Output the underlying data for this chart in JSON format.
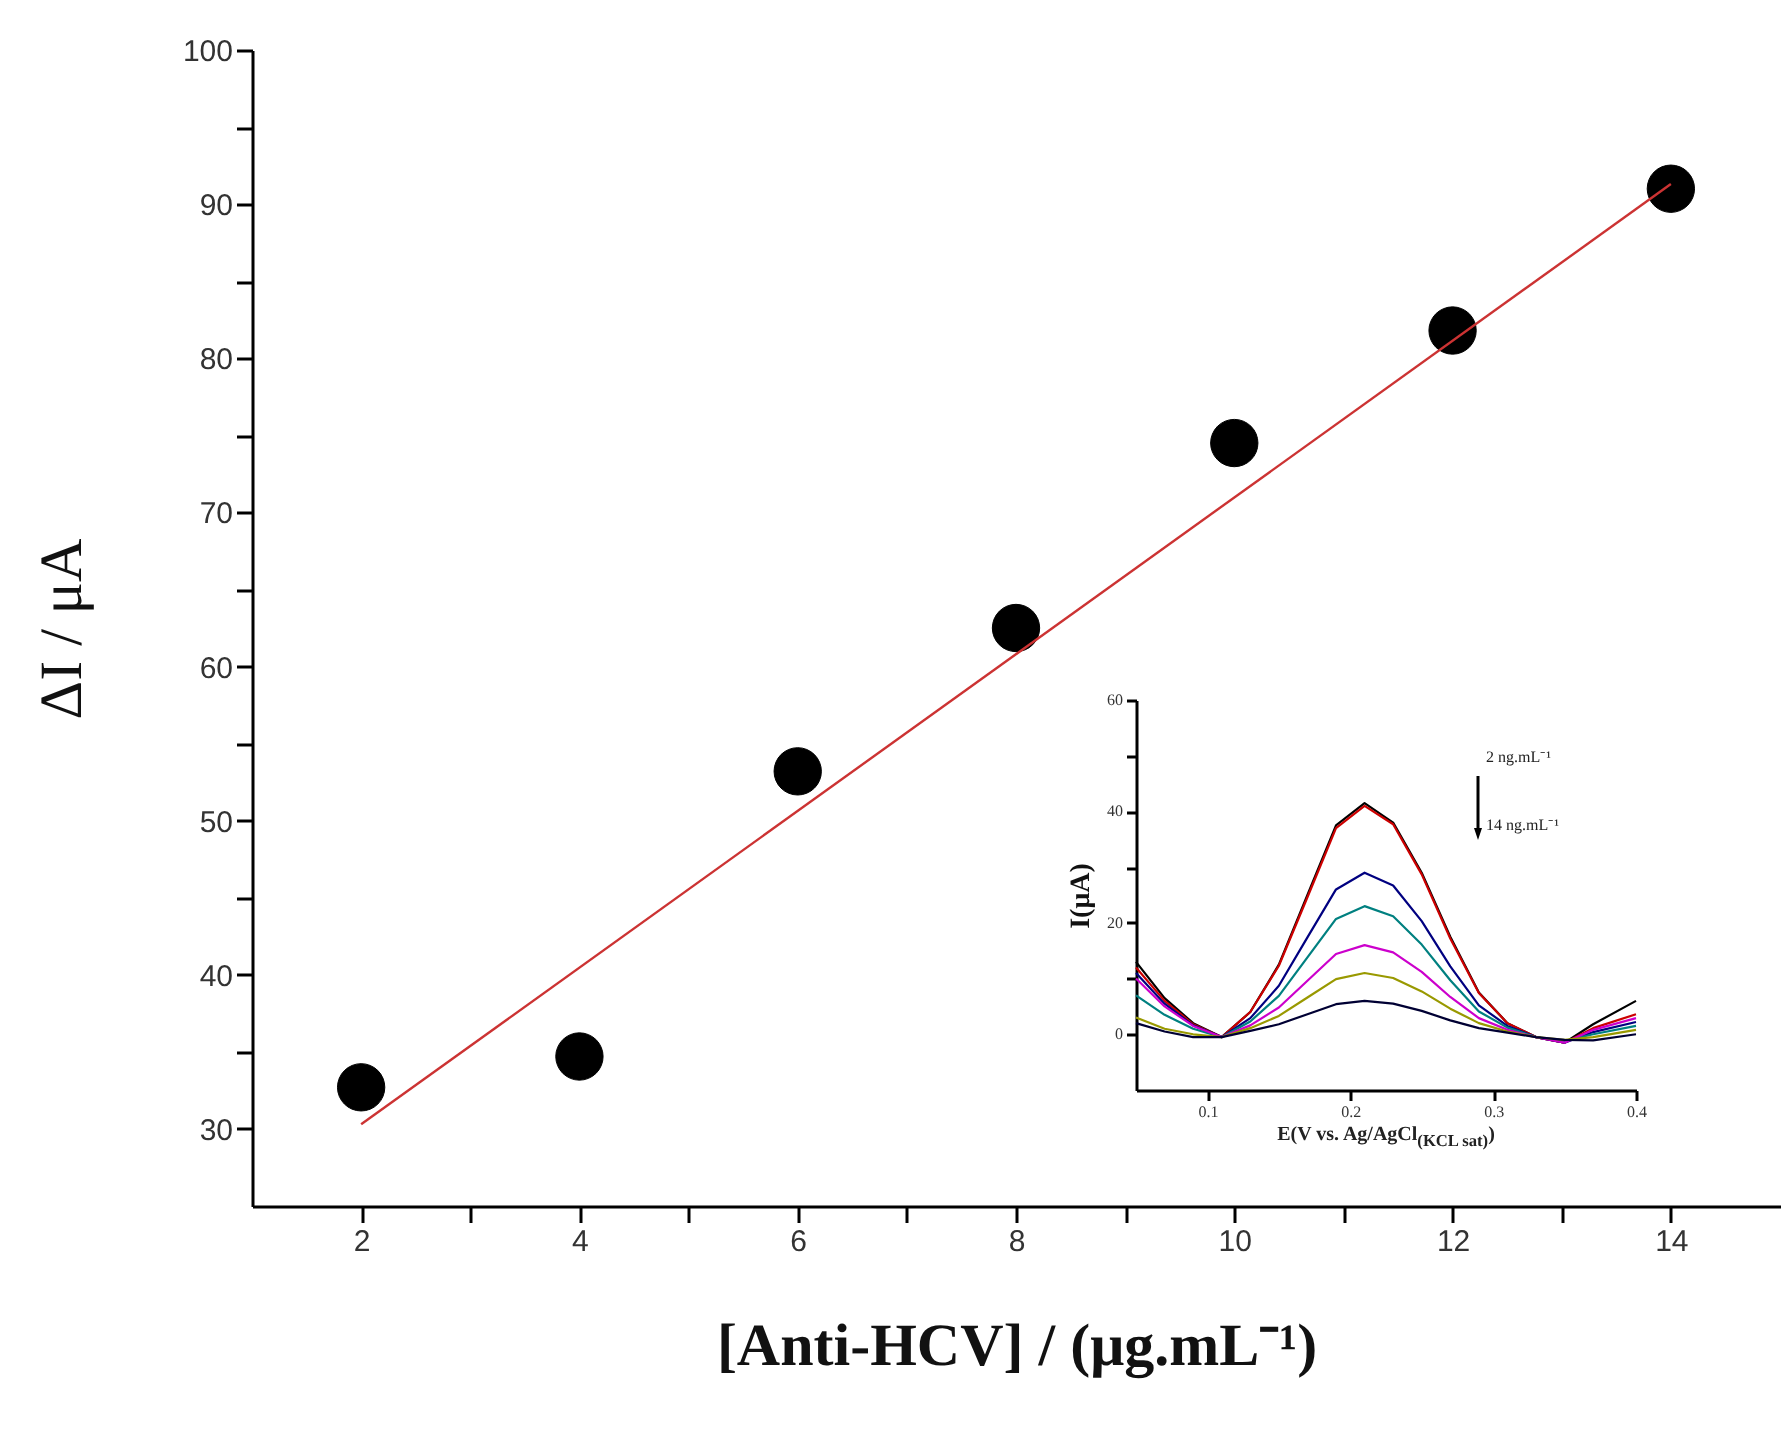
{
  "chart_data": [
    {
      "type": "scatter",
      "xlabel": "[Anti-HCV] / (μg.mL⁻¹)",
      "ylabel": "ΔI / μA",
      "x": [
        2,
        4,
        6,
        8,
        10,
        12,
        14
      ],
      "series": [
        {
          "color": "#000000",
          "marker": "circle",
          "values": [
            32.7,
            34.7,
            53.2,
            62.5,
            74.5,
            81.8,
            91.0
          ]
        },
        {
          "type": "line",
          "color": "#cc3333",
          "x": [
            2,
            14
          ],
          "values": [
            30.3,
            91.3
          ]
        }
      ],
      "grid": false,
      "legend": false,
      "xlim": [
        1,
        15
      ],
      "xticks": [
        2,
        {
          "value": 3,
          "label": null
        },
        4,
        {
          "value": 5,
          "label": null
        },
        6,
        {
          "value": 7,
          "label": null
        },
        8,
        {
          "value": 9,
          "label": null
        },
        10,
        {
          "value": 11,
          "label": null
        },
        12,
        {
          "value": 13,
          "label": null
        },
        14
      ],
      "ylim": [
        25,
        100
      ],
      "yticks": [
        30,
        {
          "value": 35,
          "label": null
        },
        40,
        {
          "value": 45,
          "label": null
        },
        50,
        {
          "value": 55,
          "label": null
        },
        60,
        {
          "value": 65,
          "label": null
        },
        70,
        {
          "value": 75,
          "label": null
        },
        80,
        {
          "value": 85,
          "label": null
        },
        90,
        {
          "value": 95,
          "label": null
        },
        100
      ]
    },
    {
      "type": "line",
      "xlabel": "E(V vs. Ag/AgCl$_{(KCL sat)}$)",
      "ylabel": "I(μA)",
      "annotations": [
        "2 ng.mL⁻¹",
        "14 ng.mL⁻¹"
      ],
      "x": [
        0.05,
        0.07,
        0.09,
        0.11,
        0.13,
        0.15,
        0.17,
        0.19,
        0.21,
        0.23,
        0.25,
        0.27,
        0.29,
        0.31,
        0.33,
        0.35,
        0.37,
        0.4
      ],
      "series": [
        {
          "color": "#000000",
          "values": [
            13,
            6.5,
            2,
            -0.5,
            4,
            12.5,
            25,
            37.5,
            41.5,
            38,
            29,
            17.5,
            7.5,
            2,
            -0.5,
            -1.5,
            1.8,
            6
          ]
        },
        {
          "color": "#cc0000",
          "values": [
            12,
            6,
            1.8,
            -0.5,
            4,
            12.3,
            24.6,
            37,
            41,
            37.7,
            28.7,
            17.2,
            7.4,
            2,
            -0.5,
            -1.5,
            1.1,
            3.6
          ]
        },
        {
          "color": "#000080",
          "values": [
            11,
            5.5,
            1.6,
            -0.5,
            2.9,
            8.7,
            17.4,
            26,
            29,
            26.7,
            20.3,
            12.2,
            5.2,
            1.5,
            -0.5,
            -1.5,
            0.4,
            2.2
          ]
        },
        {
          "color": "#008080",
          "values": [
            7,
            3.5,
            1,
            -0.5,
            2.3,
            6.9,
            13.8,
            20.7,
            23,
            21.2,
            16.1,
            9.7,
            4.1,
            1.2,
            -0.5,
            -1.2,
            0,
            1.5
          ]
        },
        {
          "color": "#cc00cc",
          "values": [
            10,
            5,
            1.5,
            -0.5,
            1.6,
            4.8,
            9.6,
            14.4,
            16,
            14.7,
            11.2,
            6.7,
            2.9,
            0.8,
            -0.5,
            -1.5,
            0.8,
            2.9
          ]
        },
        {
          "color": "#999900",
          "values": [
            3,
            1,
            0,
            -0.5,
            1.1,
            3.3,
            6.6,
            9.9,
            11,
            10.1,
            7.7,
            4.6,
            2,
            0.5,
            -0.5,
            -1,
            -0.5,
            0.8
          ]
        },
        {
          "color": "#000033",
          "values": [
            2,
            0.5,
            -0.5,
            -0.5,
            0.6,
            1.8,
            3.6,
            5.4,
            6,
            5.5,
            4.2,
            2.5,
            1.1,
            0.3,
            -0.5,
            -1,
            -1.1,
            0
          ]
        }
      ],
      "grid": false,
      "legend": false,
      "xlim": [
        0.05,
        0.4
      ],
      "xticks": [
        0.1,
        0.2,
        0.3,
        0.4
      ],
      "ylim": [
        -10,
        60
      ],
      "yticks": [
        0,
        {
          "value": 10,
          "label": null
        },
        20,
        {
          "value": 30,
          "label": null
        },
        40,
        {
          "value": 50,
          "label": null
        },
        60
      ]
    }
  ]
}
